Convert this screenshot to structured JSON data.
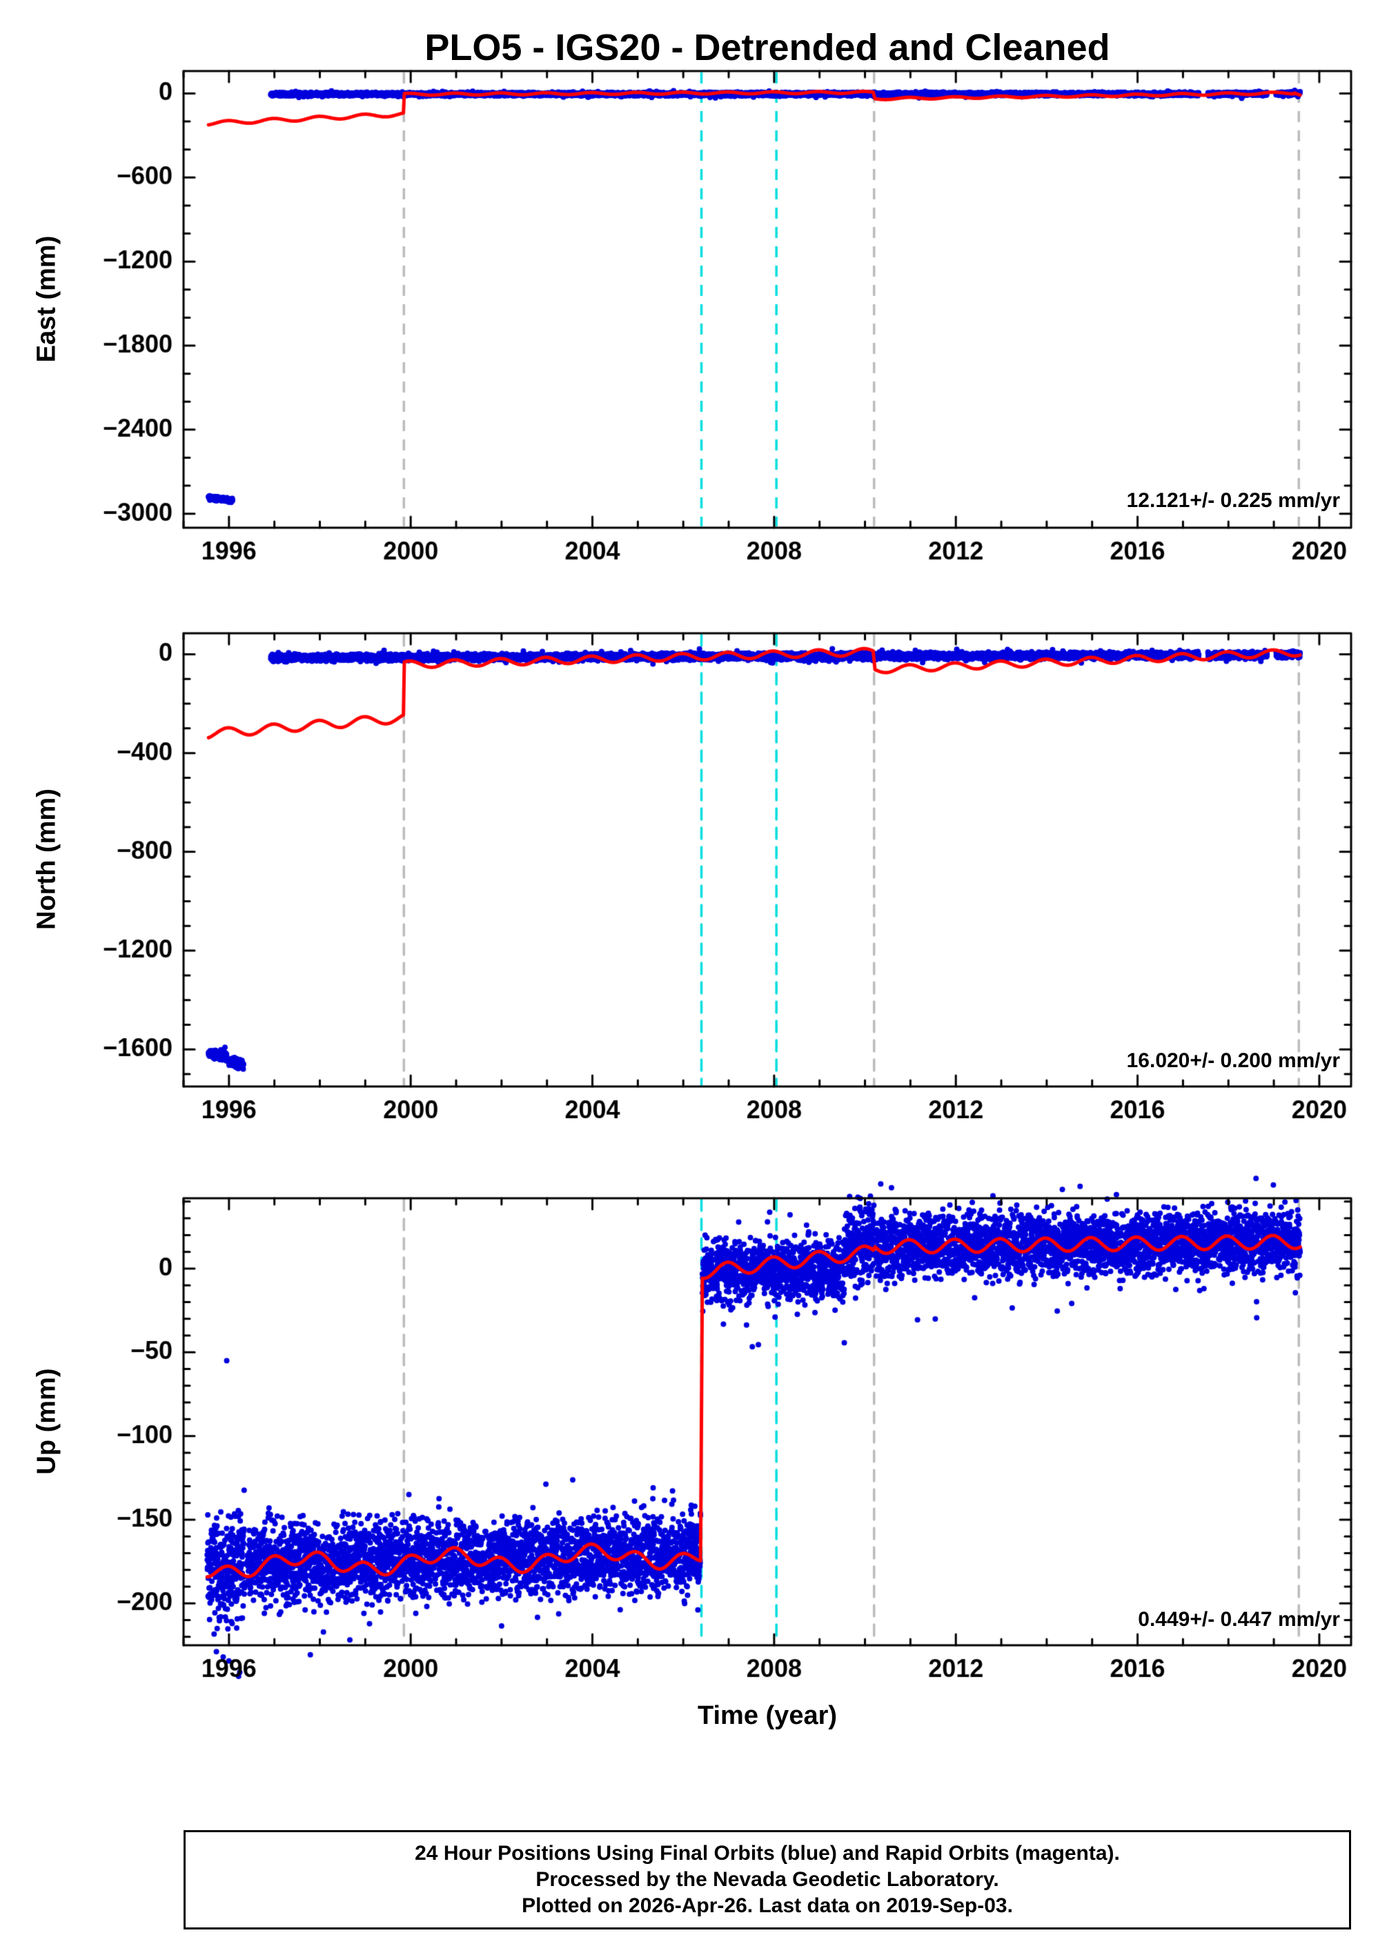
{
  "title": "PLO5 - IGS20 - Detrended and Cleaned",
  "xlabel": "Time (year)",
  "footer": {
    "line1": "24 Hour Positions Using Final Orbits (blue) and Rapid Orbits (magenta).",
    "line2": "Processed by the Nevada Geodetic Laboratory.",
    "line3": "Plotted on 2026-Apr-26. Last data on 2019-Sep-03."
  },
  "colors": {
    "blue": "#0000dd",
    "red": "#ff0000",
    "cyan": "#00dede",
    "gray": "#bbbbbb",
    "frame": "#000000"
  },
  "chart_data": [
    {
      "type": "scatter",
      "component": "east",
      "ylabel": "East (mm)",
      "annotation": "12.121+/- 0.225 mm/yr",
      "xlim": [
        1995.0,
        2020.7
      ],
      "ylim": [
        -3100,
        160
      ],
      "xticks": [
        1996,
        2000,
        2004,
        2008,
        2012,
        2016,
        2020
      ],
      "yticks": [
        0,
        -600,
        -1200,
        -1800,
        -2400,
        -3000
      ],
      "y_minor_step": 200,
      "vlines": [
        {
          "x": 1999.85,
          "color": "gray"
        },
        {
          "x": 2006.4,
          "color": "cyan"
        },
        {
          "x": 2008.05,
          "color": "cyan"
        },
        {
          "x": 2010.2,
          "color": "gray"
        },
        {
          "x": 2019.55,
          "color": "gray"
        }
      ],
      "blue_segments": [
        {
          "t0": 1995.55,
          "t1": 1996.08,
          "y0": -2885,
          "y1": -2905,
          "sigma": 7,
          "per_year": 360
        },
        {
          "t0": 1996.92,
          "t1": 2017.35,
          "y0": -5,
          "y1": -4,
          "sigma": 5.5,
          "per_year": 330
        },
        {
          "t0": 2017.55,
          "t1": 2018.85,
          "y0": -4,
          "y1": -3,
          "sigma": 5.5,
          "per_year": 330
        },
        {
          "t0": 2019.05,
          "t1": 2019.58,
          "y0": -2,
          "y1": 2,
          "sigma": 5.5,
          "per_year": 330
        }
      ],
      "outlier_points": [],
      "red_segments": [
        {
          "t0": 1995.55,
          "t1": 1999.84,
          "y0": -213,
          "y1": -148,
          "amp": 13
        },
        {
          "t0": 1999.86,
          "t1": 2010.18,
          "y0": -6,
          "y1": 8,
          "amp": 7
        },
        {
          "t0": 2010.22,
          "t1": 2019.45,
          "y0": -38,
          "y1": 4,
          "amp": 7
        },
        {
          "t0": 2019.45,
          "t1": 2019.58,
          "y0": 4,
          "y1": -12,
          "amp": 0
        }
      ]
    },
    {
      "type": "scatter",
      "component": "north",
      "ylabel": "North (mm)",
      "annotation": "16.020+/- 0.200 mm/yr",
      "xlim": [
        1995.0,
        2020.7
      ],
      "ylim": [
        -1750,
        85
      ],
      "xticks": [
        1996,
        2000,
        2004,
        2008,
        2012,
        2016,
        2020
      ],
      "yticks": [
        0,
        -400,
        -800,
        -1200,
        -1600
      ],
      "y_minor_step": 100,
      "vlines": [
        {
          "x": 1999.85,
          "color": "gray"
        },
        {
          "x": 2006.4,
          "color": "cyan"
        },
        {
          "x": 2008.05,
          "color": "cyan"
        },
        {
          "x": 2010.2,
          "color": "gray"
        },
        {
          "x": 2019.55,
          "color": "gray"
        }
      ],
      "blue_segments": [
        {
          "t0": 1995.55,
          "t1": 1995.95,
          "y0": -1618,
          "y1": -1630,
          "sigma": 8,
          "per_year": 360
        },
        {
          "t0": 1996.0,
          "t1": 1996.32,
          "y0": -1648,
          "y1": -1662,
          "sigma": 8,
          "per_year": 360
        },
        {
          "t0": 1996.92,
          "t1": 2017.35,
          "y0": -14,
          "y1": -4,
          "sigma": 6,
          "per_year": 330
        },
        {
          "t0": 2017.55,
          "t1": 2018.85,
          "y0": -5,
          "y1": -4,
          "sigma": 6,
          "per_year": 330
        },
        {
          "t0": 2019.05,
          "t1": 2019.58,
          "y0": -3,
          "y1": 0,
          "sigma": 6,
          "per_year": 330
        }
      ],
      "outlier_points": [],
      "red_segments": [
        {
          "t0": 1995.55,
          "t1": 1999.84,
          "y0": -322,
          "y1": -258,
          "amp": 18
        },
        {
          "t0": 1999.86,
          "t1": 2010.18,
          "y0": -42,
          "y1": 10,
          "amp": 14
        },
        {
          "t0": 2010.22,
          "t1": 2019.58,
          "y0": -62,
          "y1": 8,
          "amp": 14
        }
      ]
    },
    {
      "type": "scatter",
      "component": "up",
      "ylabel": "Up (mm)",
      "annotation": "0.449+/- 0.447 mm/yr",
      "xlim": [
        1995.0,
        2020.7
      ],
      "ylim": [
        -225,
        42
      ],
      "xticks": [
        1996,
        2000,
        2004,
        2008,
        2012,
        2016,
        2020
      ],
      "yticks": [
        0,
        -50,
        -100,
        -150,
        -200
      ],
      "y_minor_step": 10,
      "vlines": [
        {
          "x": 1999.85,
          "color": "gray"
        },
        {
          "x": 2006.4,
          "color": "cyan"
        },
        {
          "x": 2008.05,
          "color": "cyan"
        },
        {
          "x": 2010.2,
          "color": "gray"
        },
        {
          "x": 2019.55,
          "color": "gray"
        }
      ],
      "blue_segments": [
        {
          "t0": 1995.52,
          "t1": 1996.35,
          "y0": -180,
          "y1": -180,
          "sigma": 15,
          "per_year": 360
        },
        {
          "t0": 1996.4,
          "t1": 2006.38,
          "y0": -176,
          "y1": -170,
          "sigma": 11,
          "per_year": 330
        },
        {
          "t0": 2006.42,
          "t1": 2009.55,
          "y0": -1,
          "y1": 0,
          "sigma": 9,
          "per_year": 330
        },
        {
          "t0": 2009.55,
          "t1": 2010.2,
          "y0": 14,
          "y1": 18,
          "sigma": 11,
          "per_year": 330
        },
        {
          "t0": 2010.25,
          "t1": 2019.58,
          "y0": 13,
          "y1": 16,
          "sigma": 9,
          "per_year": 330
        }
      ],
      "outlier_points": [
        [
          1995.95,
          -55
        ],
        [
          1995.82,
          -208
        ],
        [
          1996.07,
          -212
        ]
      ],
      "red_segments": [
        {
          "t0": 1995.52,
          "t1": 2006.38,
          "y0": -178,
          "y1": -171,
          "amp": 4,
          "amp2": 4,
          "period2": 3.2
        },
        {
          "t0": 2006.42,
          "t1": 2010.18,
          "y0": -2,
          "y1": 10,
          "amp": 4
        },
        {
          "t0": 2010.22,
          "t1": 2019.58,
          "y0": 13,
          "y1": 16,
          "amp": 4
        }
      ]
    }
  ]
}
